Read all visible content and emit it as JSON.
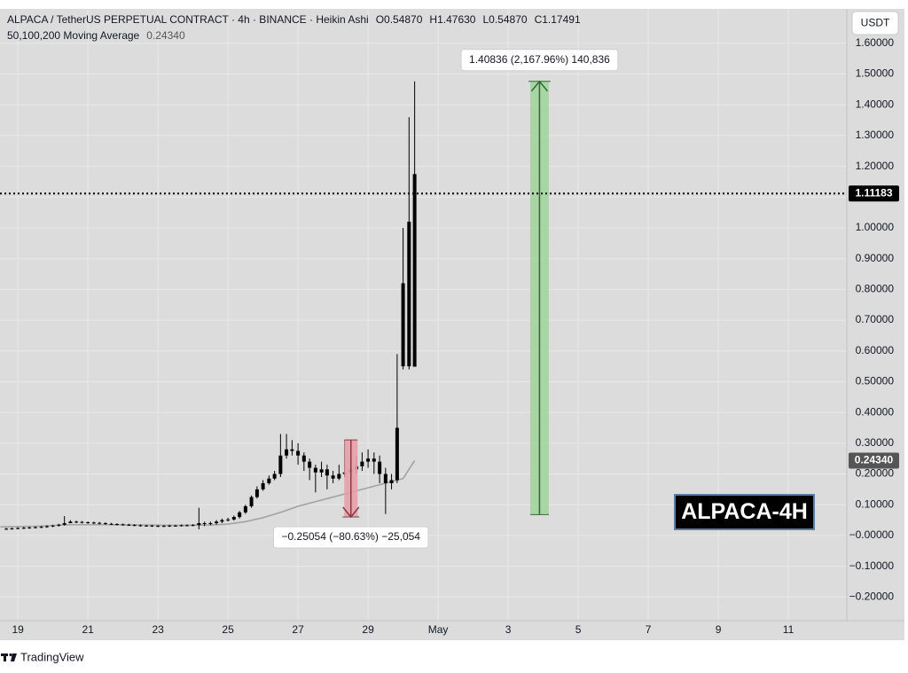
{
  "chart_data": {
    "type": "candlestick",
    "title": "ALPACA / TetherUS PERPETUAL CONTRACT · 4h · BINANCE · Heikin Ashi",
    "ohlc": [
      {
        "key": "O",
        "value": "0.54870"
      },
      {
        "key": "H",
        "value": "1.47630"
      },
      {
        "key": "L",
        "value": "0.54870"
      },
      {
        "key": "C",
        "value": "1.17491"
      }
    ],
    "currency": "USDT",
    "watermark": "ALPACA-4H",
    "brand": "TradingView",
    "color": "#000000",
    "x": [
      18.67,
      18.83,
      19,
      19.17,
      19.33,
      19.5,
      19.67,
      19.83,
      20,
      20.17,
      20.33,
      20.5,
      20.67,
      20.83,
      21,
      21.17,
      21.33,
      21.5,
      21.67,
      21.83,
      22,
      22.17,
      22.33,
      22.5,
      22.67,
      22.83,
      23,
      23.17,
      23.33,
      23.5,
      23.67,
      23.83,
      24,
      24.17,
      24.33,
      24.5,
      24.67,
      24.83,
      25,
      25.17,
      25.33,
      25.5,
      25.67,
      25.83,
      26,
      26.17,
      26.33,
      26.5,
      26.67,
      26.83,
      27,
      27.17,
      27.33,
      27.5,
      27.67,
      27.83,
      28,
      28.17,
      28.33,
      28.5,
      28.67,
      28.83,
      29,
      29.17,
      29.33,
      29.5,
      29.67,
      29.83,
      30,
      30.17,
      30.33
    ],
    "open": [
      0.021,
      0.022,
      0.023,
      0.024,
      0.025,
      0.026,
      0.027,
      0.028,
      0.03,
      0.032,
      0.035,
      0.04,
      0.045,
      0.044,
      0.043,
      0.042,
      0.041,
      0.04,
      0.038,
      0.037,
      0.036,
      0.035,
      0.034,
      0.033,
      0.032,
      0.032,
      0.031,
      0.031,
      0.031,
      0.032,
      0.032,
      0.033,
      0.033,
      0.034,
      0.04,
      0.038,
      0.04,
      0.045,
      0.05,
      0.052,
      0.06,
      0.075,
      0.095,
      0.125,
      0.15,
      0.17,
      0.185,
      0.2,
      0.26,
      0.28,
      0.275,
      0.26,
      0.24,
      0.22,
      0.205,
      0.215,
      0.195,
      0.185,
      0.2,
      0.205,
      0.215,
      0.225,
      0.24,
      0.25,
      0.24,
      0.2,
      0.17,
      0.18,
      0.55,
      0.55,
      0.5487
    ],
    "high": [
      0.025,
      0.026,
      0.027,
      0.028,
      0.029,
      0.03,
      0.031,
      0.033,
      0.035,
      0.038,
      0.063,
      0.05,
      0.048,
      0.047,
      0.046,
      0.045,
      0.044,
      0.043,
      0.041,
      0.04,
      0.039,
      0.038,
      0.037,
      0.036,
      0.035,
      0.035,
      0.034,
      0.034,
      0.035,
      0.035,
      0.036,
      0.036,
      0.037,
      0.09,
      0.045,
      0.045,
      0.05,
      0.055,
      0.058,
      0.065,
      0.08,
      0.1,
      0.13,
      0.16,
      0.18,
      0.195,
      0.21,
      0.33,
      0.33,
      0.31,
      0.3,
      0.27,
      0.25,
      0.23,
      0.24,
      0.23,
      0.21,
      0.23,
      0.31,
      0.24,
      0.26,
      0.27,
      0.28,
      0.27,
      0.26,
      0.22,
      0.2,
      0.59,
      1.0,
      1.36,
      1.4763
    ],
    "low": [
      0.018,
      0.019,
      0.02,
      0.021,
      0.022,
      0.023,
      0.024,
      0.025,
      0.027,
      0.029,
      0.032,
      0.04,
      0.04,
      0.039,
      0.038,
      0.037,
      0.036,
      0.035,
      0.034,
      0.033,
      0.032,
      0.031,
      0.03,
      0.029,
      0.029,
      0.028,
      0.028,
      0.028,
      0.028,
      0.029,
      0.029,
      0.03,
      0.03,
      0.02,
      0.03,
      0.033,
      0.035,
      0.04,
      0.045,
      0.048,
      0.055,
      0.07,
      0.09,
      0.12,
      0.145,
      0.165,
      0.18,
      0.19,
      0.25,
      0.26,
      0.23,
      0.21,
      0.18,
      0.14,
      0.19,
      0.15,
      0.17,
      0.18,
      0.19,
      0.2,
      0.2,
      0.21,
      0.22,
      0.2,
      0.17,
      0.07,
      0.15,
      0.17,
      0.54,
      0.54,
      0.5487
    ],
    "close": [
      0.022,
      0.023,
      0.024,
      0.025,
      0.026,
      0.027,
      0.028,
      0.03,
      0.032,
      0.035,
      0.04,
      0.045,
      0.044,
      0.043,
      0.042,
      0.041,
      0.04,
      0.038,
      0.037,
      0.036,
      0.035,
      0.034,
      0.033,
      0.032,
      0.032,
      0.031,
      0.031,
      0.031,
      0.032,
      0.032,
      0.033,
      0.033,
      0.034,
      0.04,
      0.038,
      0.04,
      0.045,
      0.05,
      0.052,
      0.06,
      0.075,
      0.095,
      0.125,
      0.15,
      0.17,
      0.185,
      0.2,
      0.26,
      0.28,
      0.275,
      0.26,
      0.24,
      0.22,
      0.205,
      0.215,
      0.195,
      0.185,
      0.2,
      0.205,
      0.215,
      0.225,
      0.24,
      0.25,
      0.24,
      0.2,
      0.17,
      0.18,
      0.35,
      0.82,
      1.02,
      1.17491
    ],
    "ma": {
      "name": "50,100,200 Moving Average",
      "color": "#a3a3a3",
      "x": [
        18.5,
        19.5,
        20.5,
        21.5,
        22.5,
        23.5,
        24.5,
        25,
        25.5,
        26,
        26.5,
        27,
        27.5,
        28,
        28.5,
        29,
        29.5,
        30,
        30.33
      ],
      "values": [
        0.028,
        0.03,
        0.035,
        0.035,
        0.034,
        0.033,
        0.034,
        0.037,
        0.045,
        0.058,
        0.075,
        0.095,
        0.11,
        0.125,
        0.14,
        0.155,
        0.17,
        0.185,
        0.2434
      ],
      "last": {
        "value": 0.2434,
        "label": "0.24340"
      }
    },
    "last_price": {
      "value": 1.11183,
      "label": "1.11183"
    },
    "measures": [
      {
        "from": 0.06794,
        "to": 1.4763,
        "x0": 33.63,
        "x1": 34.16,
        "label": "1.40836 (2,167.96%) 140,836",
        "color": "#a3d49d",
        "line": "#2e6b2e"
      },
      {
        "from": 0.3107,
        "to": 0.06016,
        "x0": 28.32,
        "x1": 28.7,
        "label": "−0.25054 (−80.63%) −25,054",
        "color": "#e8a0a8",
        "line": "#8a3a44"
      }
    ],
    "xlim": [
      18.49,
      42.67
    ],
    "ylim": [
      -0.277,
      1.712
    ],
    "xticks": [
      19,
      21,
      23,
      25,
      27,
      29,
      {
        "value": 31,
        "label": "May"
      },
      {
        "value": 33,
        "label": "3"
      },
      {
        "value": 35,
        "label": "5"
      },
      {
        "value": 37,
        "label": "7"
      },
      {
        "value": 39,
        "label": "9"
      },
      {
        "value": 41,
        "label": "11"
      }
    ],
    "yticks": [
      {
        "value": 1.6,
        "label": "1.60000"
      },
      {
        "value": 1.5,
        "label": "1.50000"
      },
      {
        "value": 1.4,
        "label": "1.40000"
      },
      {
        "value": 1.3,
        "label": "1.30000"
      },
      {
        "value": 1.2,
        "label": "1.20000"
      },
      {
        "value": 1.1,
        "label": "1.10000"
      },
      {
        "value": 1.0,
        "label": "1.00000"
      },
      {
        "value": 0.9,
        "label": "0.90000"
      },
      {
        "value": 0.8,
        "label": "0.80000"
      },
      {
        "value": 0.7,
        "label": "0.70000"
      },
      {
        "value": 0.6,
        "label": "0.60000"
      },
      {
        "value": 0.5,
        "label": "0.50000"
      },
      {
        "value": 0.4,
        "label": "0.40000"
      },
      {
        "value": 0.3,
        "label": "0.30000"
      },
      {
        "value": 0.2,
        "label": "0.20000"
      },
      {
        "value": 0.1,
        "label": "0.10000"
      },
      {
        "value": 0,
        "label": "−0.00000"
      },
      {
        "value": -0.1,
        "label": "−0.10000"
      },
      {
        "value": -0.2,
        "label": "−0.20000"
      }
    ],
    "grid": true
  }
}
